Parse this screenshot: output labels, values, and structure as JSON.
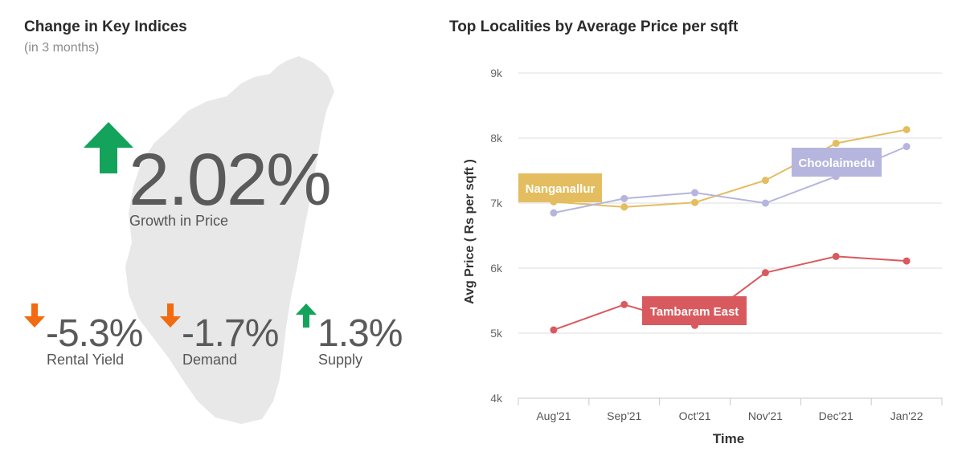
{
  "left_panel": {
    "title": "Change in Key Indices",
    "subtitle": "(in 3 months)",
    "main_metric": {
      "value": "2.02%",
      "label": "Growth in Price",
      "direction": "up"
    },
    "metrics": [
      {
        "value": "-5.3%",
        "label": "Rental Yield",
        "direction": "down"
      },
      {
        "value": "-1.7%",
        "label": "Demand",
        "direction": "down"
      },
      {
        "value": "1.3%",
        "label": "Supply",
        "direction": "up"
      }
    ],
    "colors": {
      "up": "#13a35b",
      "down": "#f26b10",
      "map": "#e8e8e8"
    }
  },
  "chart_data": {
    "type": "line",
    "title": "Top Localities by Average Price per sqft",
    "xlabel": "Time",
    "ylabel": "Avg Price ( Rs per sqft )",
    "categories": [
      "Aug'21",
      "Sep'21",
      "Oct'21",
      "Nov'21",
      "Dec'21",
      "Jan'22"
    ],
    "ylim": [
      4000,
      9000
    ],
    "yticks": [
      4000,
      5000,
      6000,
      7000,
      8000,
      9000
    ],
    "ytick_labels": [
      "4k",
      "5k",
      "6k",
      "7k",
      "8k",
      "9k"
    ],
    "grid": true,
    "series": [
      {
        "name": "Nanganallur",
        "color": "#e3bd5f",
        "values": [
          7020,
          6940,
          7010,
          7350,
          7920,
          8130
        ],
        "label_index": 0
      },
      {
        "name": "Choolaimedu",
        "color": "#b5b5de",
        "values": [
          6850,
          7070,
          7160,
          7000,
          7410,
          7870
        ],
        "label_index": 4
      },
      {
        "name": "Tambaram East",
        "color": "#d95a5e",
        "values": [
          5050,
          5440,
          5120,
          5930,
          6180,
          6110
        ],
        "label_index": 2
      }
    ]
  }
}
